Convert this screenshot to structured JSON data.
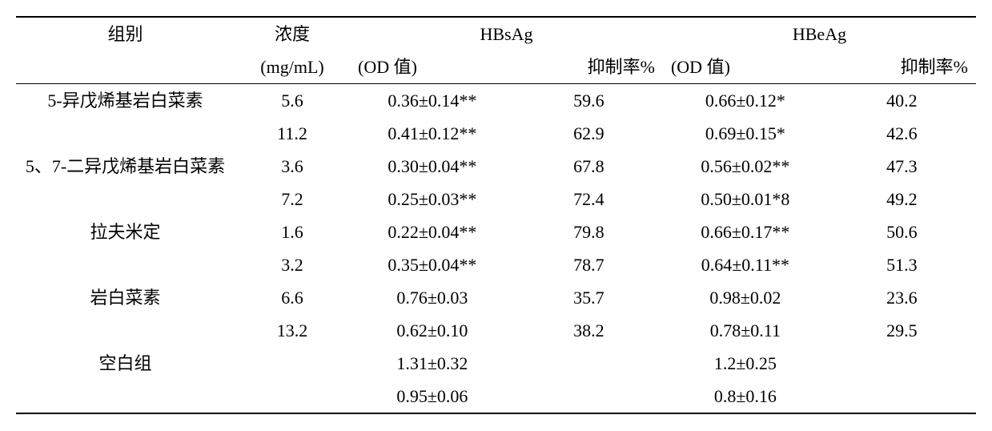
{
  "header": {
    "group": "组别",
    "conc_line1": "浓度",
    "conc_line2": "(mg/mL)",
    "hbsag": "HBsAg",
    "hbeag": "HBeAg",
    "od_label": "(OD 值)",
    "inh_label": "抑制率%"
  },
  "rows": [
    {
      "group": "5-异戊烯基岩白菜素",
      "conc": "5.6",
      "s_od": "0.36±0.14**",
      "s_inh": "59.6",
      "e_od": "0.66±0.12*",
      "e_inh": "40.2"
    },
    {
      "group": "",
      "conc": "11.2",
      "s_od": "0.41±0.12**",
      "s_inh": "62.9",
      "e_od": "0.69±0.15*",
      "e_inh": "42.6"
    },
    {
      "group": "5、7-二异戊烯基岩白菜素",
      "conc": "3.6",
      "s_od": "0.30±0.04**",
      "s_inh": "67.8",
      "e_od": "0.56±0.02**",
      "e_inh": "47.3"
    },
    {
      "group": "",
      "conc": "7.2",
      "s_od": "0.25±0.03**",
      "s_inh": "72.4",
      "e_od": "0.50±0.01*8",
      "e_inh": "49.2"
    },
    {
      "group": "拉夫米定",
      "conc": "1.6",
      "s_od": "0.22±0.04**",
      "s_inh": "79.8",
      "e_od": "0.66±0.17**",
      "e_inh": "50.6"
    },
    {
      "group": "",
      "conc": "3.2",
      "s_od": "0.35±0.04**",
      "s_inh": "78.7",
      "e_od": "0.64±0.11**",
      "e_inh": "51.3"
    },
    {
      "group": "岩白菜素",
      "conc": "6.6",
      "s_od": "0.76±0.03",
      "s_inh": "35.7",
      "e_od": "0.98±0.02",
      "e_inh": "23.6"
    },
    {
      "group": "",
      "conc": "13.2",
      "s_od": "0.62±0.10",
      "s_inh": "38.2",
      "e_od": "0.78±0.11",
      "e_inh": "29.5"
    },
    {
      "group": "空白组",
      "conc": "",
      "s_od": "1.31±0.32",
      "s_inh": "",
      "e_od": "1.2±0.25",
      "e_inh": ""
    },
    {
      "group": "",
      "conc": "",
      "s_od": "0.95±0.06",
      "s_inh": "",
      "e_od": "0.8±0.16",
      "e_inh": ""
    }
  ]
}
